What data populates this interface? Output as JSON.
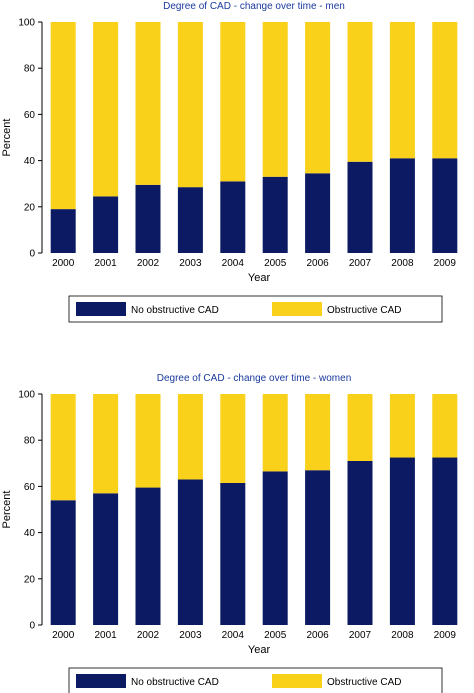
{
  "colors": {
    "no_obstructive": "#0b1a63",
    "obstructive": "#f9d01a",
    "title": "#1a3a9e"
  },
  "chart_data": [
    {
      "type": "bar",
      "stacked": true,
      "title": "Degree of CAD - change over time - men",
      "xlabel": "Year",
      "ylabel": "Percent",
      "ylim": [
        0,
        100
      ],
      "yticks": [
        0,
        20,
        40,
        60,
        80,
        100
      ],
      "categories": [
        "2000",
        "2001",
        "2002",
        "2003",
        "2004",
        "2005",
        "2006",
        "2007",
        "2008",
        "2009"
      ],
      "series": [
        {
          "name": "No obstructive CAD",
          "values": [
            19,
            24.5,
            29.5,
            28.5,
            31,
            33,
            34.5,
            39.5,
            41,
            41
          ]
        },
        {
          "name": "Obstructive CAD",
          "values": [
            81,
            75.5,
            70.5,
            71.5,
            69,
            67,
            65.5,
            60.5,
            59,
            59
          ]
        }
      ],
      "legend_position": "bottom"
    },
    {
      "type": "bar",
      "stacked": true,
      "title": "Degree of CAD - change over time - women",
      "xlabel": "Year",
      "ylabel": "Percent",
      "ylim": [
        0,
        100
      ],
      "yticks": [
        0,
        20,
        40,
        60,
        80,
        100
      ],
      "categories": [
        "2000",
        "2001",
        "2002",
        "2003",
        "2004",
        "2005",
        "2006",
        "2007",
        "2008",
        "2009"
      ],
      "series": [
        {
          "name": "No obstructive CAD",
          "values": [
            54,
            57,
            59.5,
            63,
            61.5,
            66.5,
            67,
            71,
            72.5,
            72.5
          ]
        },
        {
          "name": "Obstructive CAD",
          "values": [
            46,
            43,
            40.5,
            37,
            38.5,
            33.5,
            33,
            29,
            27.5,
            27.5
          ]
        }
      ],
      "legend_position": "bottom"
    }
  ]
}
